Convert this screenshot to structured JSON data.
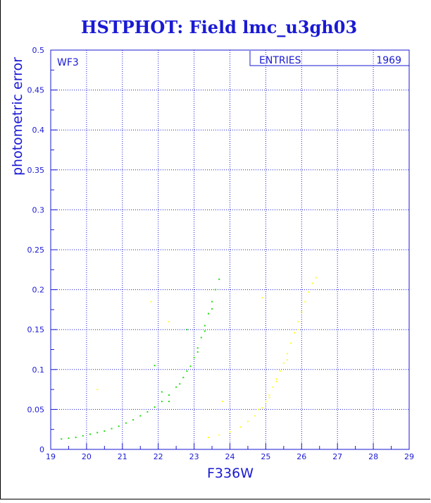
{
  "chart_data": {
    "type": "scatter",
    "title": "HSTPHOT: Field lmc_u3gh03",
    "xlabel": "F336W",
    "ylabel": "photometric error",
    "xlim": [
      19,
      29
    ],
    "ylim": [
      0,
      0.5
    ],
    "x_ticks": [
      "19",
      "20",
      "21",
      "22",
      "23",
      "24",
      "25",
      "26",
      "27",
      "28",
      "29"
    ],
    "y_ticks": [
      "0",
      "0.05",
      "0.1",
      "0.15",
      "0.2",
      "0.25",
      "0.3",
      "0.35",
      "0.4",
      "0.45",
      "0.5"
    ],
    "grid": true,
    "annotation": "WF3",
    "stats_box": {
      "label": "ENTRIES",
      "value": "1969"
    },
    "axis_color": "#1a1ad4",
    "series": [
      {
        "color": "#22dd11",
        "points": [
          [
            19.3,
            0.013
          ],
          [
            19.5,
            0.014
          ],
          [
            19.7,
            0.015
          ],
          [
            19.9,
            0.017
          ],
          [
            20.1,
            0.019
          ],
          [
            20.3,
            0.021
          ],
          [
            20.5,
            0.023
          ],
          [
            20.7,
            0.026
          ],
          [
            20.9,
            0.029
          ],
          [
            21.1,
            0.033
          ],
          [
            21.3,
            0.037
          ],
          [
            21.5,
            0.042
          ],
          [
            21.7,
            0.047
          ],
          [
            21.9,
            0.053
          ],
          [
            22.1,
            0.06
          ],
          [
            22.3,
            0.068
          ],
          [
            22.5,
            0.078
          ],
          [
            22.7,
            0.09
          ],
          [
            22.9,
            0.104
          ],
          [
            23.0,
            0.115
          ],
          [
            23.1,
            0.127
          ],
          [
            23.2,
            0.14
          ],
          [
            23.3,
            0.155
          ],
          [
            23.4,
            0.17
          ],
          [
            23.5,
            0.185
          ],
          [
            23.6,
            0.2
          ],
          [
            23.7,
            0.213
          ],
          [
            22.3,
            0.06
          ],
          [
            22.6,
            0.082
          ],
          [
            22.8,
            0.098
          ],
          [
            23.1,
            0.122
          ],
          [
            23.3,
            0.148
          ],
          [
            23.5,
            0.176
          ],
          [
            22.8,
            0.15
          ],
          [
            21.9,
            0.105
          ],
          [
            22.1,
            0.072
          ]
        ]
      },
      {
        "color": "#ffff22",
        "points": [
          [
            23.4,
            0.015
          ],
          [
            23.7,
            0.018
          ],
          [
            24.0,
            0.022
          ],
          [
            24.3,
            0.028
          ],
          [
            24.5,
            0.035
          ],
          [
            24.7,
            0.042
          ],
          [
            24.9,
            0.052
          ],
          [
            25.0,
            0.06
          ],
          [
            25.1,
            0.068
          ],
          [
            25.2,
            0.078
          ],
          [
            25.3,
            0.088
          ],
          [
            25.4,
            0.098
          ],
          [
            25.5,
            0.108
          ],
          [
            25.6,
            0.12
          ],
          [
            25.7,
            0.133
          ],
          [
            25.8,
            0.146
          ],
          [
            25.9,
            0.16
          ],
          [
            26.0,
            0.172
          ],
          [
            26.1,
            0.185
          ],
          [
            26.2,
            0.197
          ],
          [
            26.3,
            0.208
          ],
          [
            26.4,
            0.215
          ],
          [
            24.8,
            0.05
          ],
          [
            25.1,
            0.065
          ],
          [
            25.3,
            0.085
          ],
          [
            25.6,
            0.112
          ],
          [
            25.9,
            0.15
          ],
          [
            21.8,
            0.185
          ],
          [
            22.3,
            0.16
          ],
          [
            20.3,
            0.075
          ],
          [
            24.9,
            0.19
          ],
          [
            23.8,
            0.06
          ]
        ]
      }
    ]
  }
}
